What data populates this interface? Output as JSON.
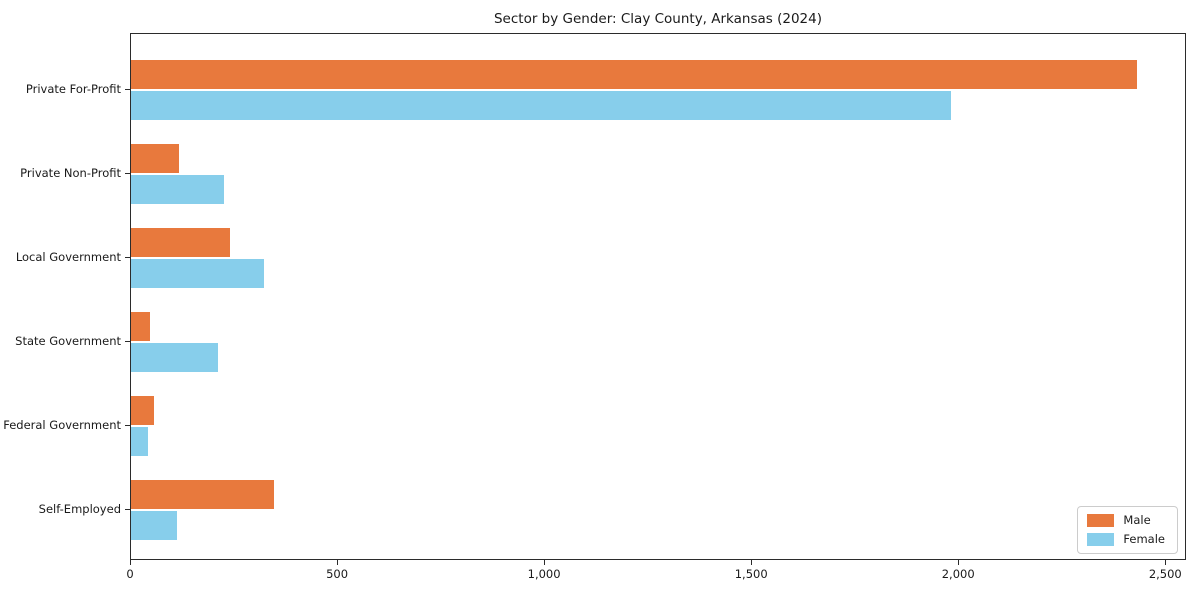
{
  "chart_data": {
    "type": "bar",
    "orientation": "horizontal",
    "title": "Sector by Gender: Clay County, Arkansas (2024)",
    "categories": [
      "Private For-Profit",
      "Private Non-Profit",
      "Local Government",
      "State Government",
      "Federal Government",
      "Self-Employed"
    ],
    "series": [
      {
        "name": "Male",
        "color": "#e8793d",
        "values": [
          2430,
          115,
          240,
          45,
          55,
          345
        ]
      },
      {
        "name": "Female",
        "color": "#87ceeb",
        "values": [
          1980,
          225,
          320,
          210,
          40,
          110
        ]
      }
    ],
    "xlabel": "",
    "ylabel": "",
    "xlim": [
      0,
      2550
    ],
    "x_ticks": [
      {
        "value": 0,
        "label": "0"
      },
      {
        "value": 500,
        "label": "500"
      },
      {
        "value": 1000,
        "label": "1,000"
      },
      {
        "value": 1500,
        "label": "1,500"
      },
      {
        "value": 2000,
        "label": "2,000"
      },
      {
        "value": 2500,
        "label": "2,500"
      }
    ],
    "grid": false,
    "legend_position": "lower right",
    "background_color": "#ffffff",
    "text_color": "#1a1a1a"
  }
}
